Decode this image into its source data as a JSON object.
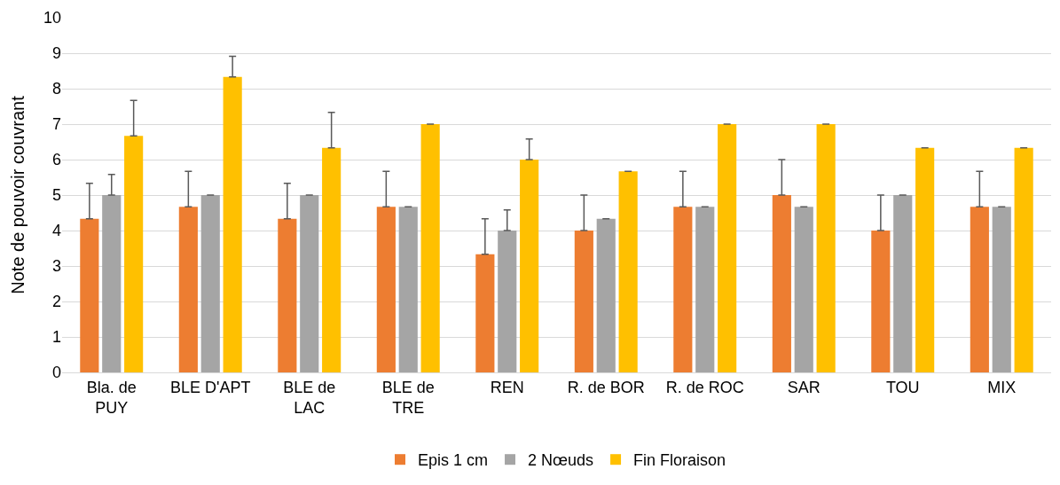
{
  "chart_data": {
    "type": "bar",
    "ylabel": "Note de pouvoir couvrant",
    "categories": [
      "Bla. de PUY",
      "BLE D'APT",
      "BLE de LAC",
      "BLE de TRE",
      "REN",
      "R. de BOR",
      "R. de ROC",
      "SAR",
      "TOU",
      "MIX"
    ],
    "series": [
      {
        "name": "Epis 1 cm",
        "color": "#ed7d31",
        "values": [
          4.33,
          4.67,
          4.33,
          4.67,
          3.33,
          4,
          4.67,
          5,
          4,
          4.67
        ],
        "errors": [
          [
            4.33,
            5.33
          ],
          [
            4.67,
            5.67
          ],
          [
            4.33,
            5.33
          ],
          [
            4.67,
            5.67
          ],
          [
            3.33,
            4.33
          ],
          [
            4,
            5
          ],
          [
            4.67,
            5.67
          ],
          [
            5,
            6
          ],
          [
            4,
            5
          ],
          [
            4.67,
            5.67
          ]
        ]
      },
      {
        "name": "2 Nœuds",
        "color": "#a5a5a5",
        "values": [
          5,
          5,
          5,
          4.67,
          4,
          4.33,
          4.67,
          4.67,
          5,
          4.67
        ],
        "errors": [
          [
            5,
            5.58
          ],
          [
            5,
            5
          ],
          [
            5,
            5
          ],
          [
            4.67,
            4.67
          ],
          [
            4,
            4.58
          ],
          [
            4.33,
            4.33
          ],
          [
            4.67,
            4.67
          ],
          [
            4.67,
            4.67
          ],
          [
            5,
            5
          ],
          [
            4.67,
            4.67
          ]
        ]
      },
      {
        "name": "Fin Floraison",
        "color": "#ffc000",
        "values": [
          6.67,
          8.33,
          6.33,
          7,
          6,
          5.67,
          7,
          7,
          6.33,
          6.33
        ],
        "errors": [
          [
            6.67,
            7.67
          ],
          [
            8.33,
            8.91
          ],
          [
            6.33,
            7.33
          ],
          [
            7,
            7
          ],
          [
            6,
            6.58
          ],
          [
            5.67,
            5.67
          ],
          [
            7,
            7
          ],
          [
            7,
            7
          ],
          [
            6.33,
            6.33
          ],
          [
            6.33,
            6.33
          ]
        ]
      }
    ],
    "ylim": [
      0,
      10
    ],
    "yticks": [
      0,
      1,
      2,
      3,
      4,
      5,
      6,
      7,
      8,
      9,
      10
    ],
    "grid": "y",
    "legend": "bottom"
  }
}
